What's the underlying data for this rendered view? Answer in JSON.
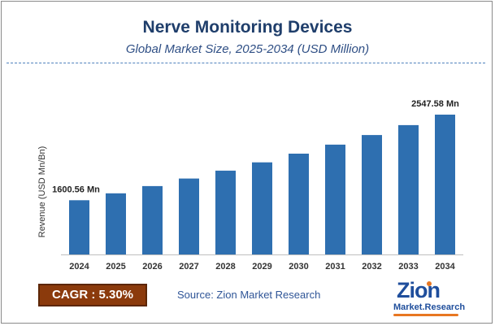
{
  "header": {
    "title": "Nerve Monitoring Devices",
    "subtitle": "Global Market Size, 2025-2034 (USD Million)"
  },
  "footer": {
    "cagr": "CAGR : 5.30%",
    "source": "Source: Zion Market Research",
    "logo_word": "Zion",
    "logo_sub": "Market.Research"
  },
  "colors": {
    "bar": "#2e6fb0",
    "title": "#1f3e6b",
    "cagr_bg": "#8b3a0c"
  },
  "chart_data": {
    "type": "bar",
    "categories": [
      "2024",
      "2025",
      "2026",
      "2027",
      "2028",
      "2029",
      "2030",
      "2031",
      "2032",
      "2033",
      "2034"
    ],
    "values": [
      1600.56,
      1685.4,
      1774.7,
      1868.8,
      1967.8,
      2072.1,
      2181.9,
      2297.6,
      2419.4,
      2547.6,
      2547.58
    ],
    "value_labels": {
      "0": "1600.56 Mn",
      "10": "2547.58 Mn"
    },
    "title": "Nerve Monitoring Devices",
    "subtitle": "Global Market Size, 2025-2034 (USD Million)",
    "xlabel": "",
    "ylabel": "Revenue (USD Mn/Bn)",
    "grid": false,
    "legend": "none"
  }
}
